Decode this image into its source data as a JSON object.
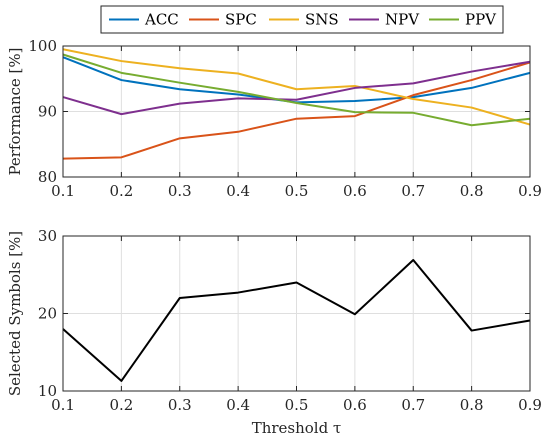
{
  "chart_data": [
    {
      "type": "line",
      "ylabel": "Performance [%]",
      "xlabel": "",
      "xlim": [
        0.1,
        0.9
      ],
      "ylim": [
        80,
        100
      ],
      "x_ticks": [
        0.1,
        0.2,
        0.3,
        0.4,
        0.5,
        0.6,
        0.7,
        0.8,
        0.9
      ],
      "x_tick_labels": [
        "0.1",
        "0.2",
        "0.3",
        "0.4",
        "0.5",
        "0.6",
        "0.7",
        "0.8",
        "0.9"
      ],
      "y_ticks": [
        80,
        90,
        100
      ],
      "y_tick_labels": [
        "80",
        "90",
        "100"
      ],
      "grid": true,
      "legend_position": "top-outside-horizontal",
      "x": [
        0.1,
        0.2,
        0.3,
        0.4,
        0.5,
        0.6,
        0.7,
        0.8,
        0.9
      ],
      "series": [
        {
          "name": "ACC",
          "color": "#0072BD",
          "values": [
            98.3,
            94.8,
            93.4,
            92.6,
            91.4,
            91.6,
            92.2,
            93.6,
            95.9
          ]
        },
        {
          "name": "SPC",
          "color": "#D95319",
          "values": [
            82.8,
            83.0,
            85.9,
            86.9,
            88.9,
            89.3,
            92.5,
            94.8,
            97.5
          ]
        },
        {
          "name": "SNS",
          "color": "#EDB120",
          "values": [
            99.5,
            97.7,
            96.6,
            95.8,
            93.4,
            93.9,
            91.9,
            90.6,
            88.0
          ]
        },
        {
          "name": "NPV",
          "color": "#7E2F8E",
          "values": [
            92.2,
            89.6,
            91.2,
            92.0,
            91.8,
            93.6,
            94.3,
            96.1,
            97.6
          ]
        },
        {
          "name": "PPV",
          "color": "#77AC30",
          "values": [
            98.7,
            95.9,
            94.4,
            93.0,
            91.3,
            89.9,
            89.8,
            87.9,
            88.9
          ]
        }
      ]
    },
    {
      "type": "line",
      "ylabel": "Selected Symbols [%]",
      "xlabel": "Threshold τ",
      "xlim": [
        0.1,
        0.9
      ],
      "ylim": [
        10,
        30
      ],
      "x_ticks": [
        0.1,
        0.2,
        0.3,
        0.4,
        0.5,
        0.6,
        0.7,
        0.8,
        0.9
      ],
      "x_tick_labels": [
        "0.1",
        "0.2",
        "0.3",
        "0.4",
        "0.5",
        "0.6",
        "0.7",
        "0.8",
        "0.9"
      ],
      "y_ticks": [
        10,
        20,
        30
      ],
      "y_tick_labels": [
        "10",
        "20",
        "30"
      ],
      "grid": true,
      "x": [
        0.1,
        0.2,
        0.3,
        0.4,
        0.5,
        0.6,
        0.7,
        0.8,
        0.9
      ],
      "series": [
        {
          "color": "#000000",
          "values": [
            18.0,
            11.3,
            22.0,
            22.7,
            24.0,
            19.9,
            26.9,
            17.8,
            19.1
          ]
        }
      ]
    }
  ]
}
